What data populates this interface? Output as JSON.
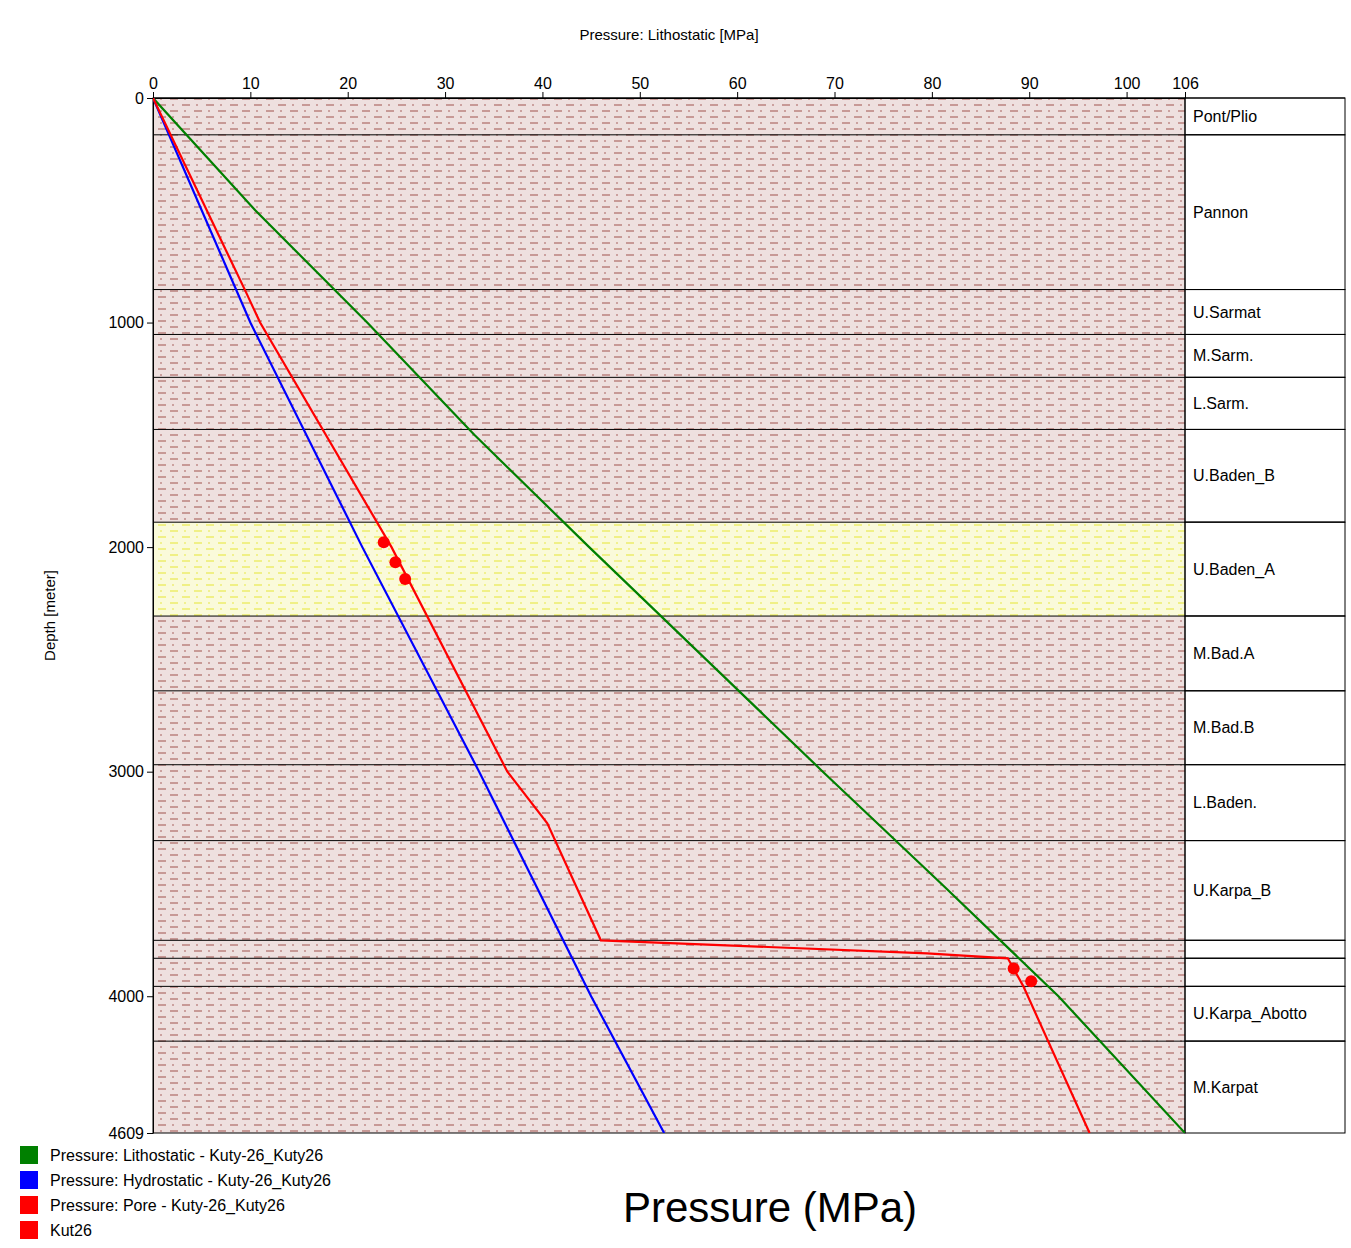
{
  "chart_data": {
    "type": "line",
    "x_label": "Pressure: Lithostatic [MPa]",
    "y_label": "Depth [meter]",
    "annotation": "Pressure (MPa)",
    "xlim": [
      0,
      106
    ],
    "xticks": [
      0,
      10,
      20,
      30,
      40,
      50,
      60,
      70,
      80,
      90,
      100,
      106
    ],
    "ylim": [
      0,
      4609
    ],
    "yticks": [
      0,
      1000,
      2000,
      3000,
      4000,
      4609
    ],
    "legend": "bottom",
    "series": [
      {
        "name": "Pressure: Lithostatic - Kuty-26_Kuty26",
        "color": "#008000",
        "type": "line",
        "line_style": "solid",
        "x": [
          0,
          10.5,
          22,
          33,
          44.8,
          56.8,
          68.8,
          81,
          93,
          106
        ],
        "values": [
          0,
          500,
          1000,
          1500,
          2000,
          2500,
          3000,
          3500,
          4000,
          4609
        ]
      },
      {
        "name": "Pressure: Hydrostatic - Kuty-26_Kuty26",
        "color": "#0000ff",
        "type": "line",
        "line_style": "solid",
        "x": [
          0,
          10,
          21.5,
          33.5,
          45,
          52.5
        ],
        "values": [
          0,
          1000,
          2000,
          3000,
          4000,
          4609
        ]
      },
      {
        "name": "Pressure: Pore - Kuty-26_Kuty26",
        "color": "#ff0000",
        "type": "line",
        "line_style": "solid",
        "x": [
          0,
          9.5,
          11,
          24.5,
          36.4,
          40.5,
          46,
          79.5,
          87.8,
          89.4,
          96.2
        ],
        "values": [
          0,
          860,
          1000,
          2000,
          3000,
          3230,
          3751,
          3809,
          3831,
          3956,
          4609
        ]
      },
      {
        "name": "Kut26",
        "color": "#ff0000",
        "type": "scatter",
        "marker": "circle",
        "x": [
          23.7,
          24.9,
          25.9,
          88.4,
          90.2
        ],
        "values": [
          1978,
          2067,
          2142,
          3876,
          3933
        ]
      }
    ],
    "formations": [
      {
        "name": "Pont/Plio",
        "top": 0,
        "base": 164,
        "color": "#a0524d"
      },
      {
        "name": "Pannon",
        "top": 164,
        "base": 853,
        "color": "#a0524d"
      },
      {
        "name": "U.Sarmat",
        "top": 853,
        "base": 1053,
        "color": "#a0524d"
      },
      {
        "name": "M.Sarm.",
        "top": 1053,
        "base": 1244,
        "color": "#a0524d"
      },
      {
        "name": "L.Sarm.",
        "top": 1244,
        "base": 1476,
        "color": "#a0524d"
      },
      {
        "name": "U.Baden_B",
        "top": 1476,
        "base": 1889,
        "color": "#a0524d"
      },
      {
        "name": "U.Baden_A",
        "top": 1889,
        "base": 2307,
        "color": "#e6e632"
      },
      {
        "name": "M.Bad.A",
        "top": 2307,
        "base": 2640,
        "color": "#a0524d"
      },
      {
        "name": "M.Bad.B",
        "top": 2640,
        "base": 2969,
        "color": "#a0524d"
      },
      {
        "name": "L.Baden.",
        "top": 2969,
        "base": 3307,
        "color": "#a0524d"
      },
      {
        "name": "U.Karpa_B",
        "top": 3307,
        "base": 3751,
        "color": "#a0524d"
      },
      {
        "name": null,
        "top": 3751,
        "base": 3831,
        "color": "#a0524d"
      },
      {
        "name": null,
        "top": 3831,
        "base": 3956,
        "color": "#a0524d"
      },
      {
        "name": "U.Karpa_Abotto",
        "top": 3956,
        "base": 4200,
        "color": "#a0524d"
      },
      {
        "name": "M.Karpat",
        "top": 4200,
        "base": 4609,
        "color": "#a0524d"
      }
    ]
  }
}
